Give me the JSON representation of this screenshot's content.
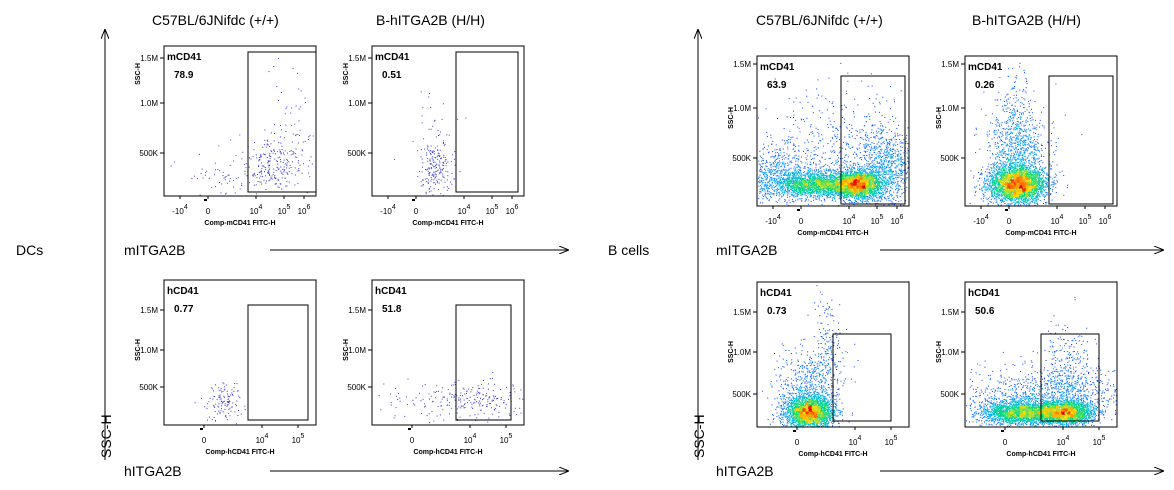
{
  "groups": [
    {
      "row_label": "DCs",
      "col_headers": [
        "C57BL/6JNifdc  (+/+)",
        "B-hITGA2B (H/H)"
      ],
      "y_axis_arrow_label": "SSC-H",
      "row_axis_labels": [
        "mITGA2B",
        "hITGA2B"
      ]
    },
    {
      "row_label": "B cells",
      "col_headers": [
        "C57BL/6JNifdc  (+/+)",
        "B-hITGA2B (H/H)"
      ],
      "y_axis_arrow_label": "SSC-H",
      "row_axis_labels": [
        "mITGA2B",
        "hITGA2B"
      ]
    }
  ],
  "chart_data": [
    {
      "type": "scatter",
      "group": "DCs",
      "column": "C57BL/6JNifdc  (+/+)",
      "gate_label": "mCD41",
      "gate_value": "78.9",
      "ylabel": "SSC-H",
      "xlabel": "Comp-mCD41 FITC-H",
      "y_ticks": [
        "1.5M",
        "1.0M",
        "500K"
      ],
      "x_ticks": [
        "-10^4",
        "0",
        "10^4",
        "10^5",
        "10^6"
      ],
      "density": "sparse"
    },
    {
      "type": "scatter",
      "group": "DCs",
      "column": "B-hITGA2B (H/H)",
      "gate_label": "mCD41",
      "gate_value": "0.51",
      "ylabel": "SSC-H",
      "xlabel": "Comp-mCD41 FITC-H",
      "y_ticks": [
        "1.5M",
        "1.0M",
        "500K"
      ],
      "x_ticks": [
        "-10^4",
        "0",
        "10^4",
        "10^5",
        "10^6"
      ],
      "density": "sparse"
    },
    {
      "type": "scatter",
      "group": "DCs",
      "column": "C57BL/6JNifdc  (+/+)",
      "gate_label": "hCD41",
      "gate_value": "0.77",
      "ylabel": "SSC-H",
      "xlabel": "Comp-hCD41 FITC-H",
      "y_ticks": [
        "1.5M",
        "1.0M",
        "500K"
      ],
      "x_ticks": [
        "0",
        "10^4",
        "10^5"
      ],
      "density": "sparse"
    },
    {
      "type": "scatter",
      "group": "DCs",
      "column": "B-hITGA2B (H/H)",
      "gate_label": "hCD41",
      "gate_value": "51.8",
      "ylabel": "SSC-H",
      "xlabel": "Comp-hCD41 FITC-H",
      "y_ticks": [
        "1.5M",
        "1.0M",
        "500K"
      ],
      "x_ticks": [
        "0",
        "10^4",
        "10^5"
      ],
      "density": "sparse"
    },
    {
      "type": "scatter",
      "group": "B cells",
      "column": "C57BL/6JNifdc  (+/+)",
      "gate_label": "mCD41",
      "gate_value": "63.9",
      "ylabel": "SSC-H",
      "xlabel": "Comp-mCD41 FITC-H",
      "y_ticks": [
        "1.5M",
        "1.0M",
        "500K"
      ],
      "x_ticks": [
        "-10^4",
        "0",
        "10^4",
        "10^5",
        "10^6"
      ],
      "density": "dense"
    },
    {
      "type": "scatter",
      "group": "B cells",
      "column": "B-hITGA2B (H/H)",
      "gate_label": "mCD41",
      "gate_value": "0.26",
      "ylabel": "SSC-H",
      "xlabel": "Comp-mCD41 FITC-H",
      "y_ticks": [
        "1.5M",
        "1.0M",
        "500K"
      ],
      "x_ticks": [
        "-10^4",
        "0",
        "10^4",
        "10^5",
        "10^6"
      ],
      "density": "dense"
    },
    {
      "type": "scatter",
      "group": "B cells",
      "column": "C57BL/6JNifdc  (+/+)",
      "gate_label": "hCD41",
      "gate_value": "0.73",
      "ylabel": "SSC-H",
      "xlabel": "Comp-hCD41 FITC-H",
      "y_ticks": [
        "1.5M",
        "1.0M",
        "500K"
      ],
      "x_ticks": [
        "0",
        "10^4",
        "10^5"
      ],
      "density": "dense"
    },
    {
      "type": "scatter",
      "group": "B cells",
      "column": "B-hITGA2B (H/H)",
      "gate_label": "hCD41",
      "gate_value": "50.6",
      "ylabel": "SSC-H",
      "xlabel": "Comp-hCD41 FITC-H",
      "y_ticks": [
        "1.5M",
        "1.0M",
        "500K"
      ],
      "x_ticks": [
        "0",
        "10^4",
        "10^5"
      ],
      "density": "dense"
    }
  ]
}
